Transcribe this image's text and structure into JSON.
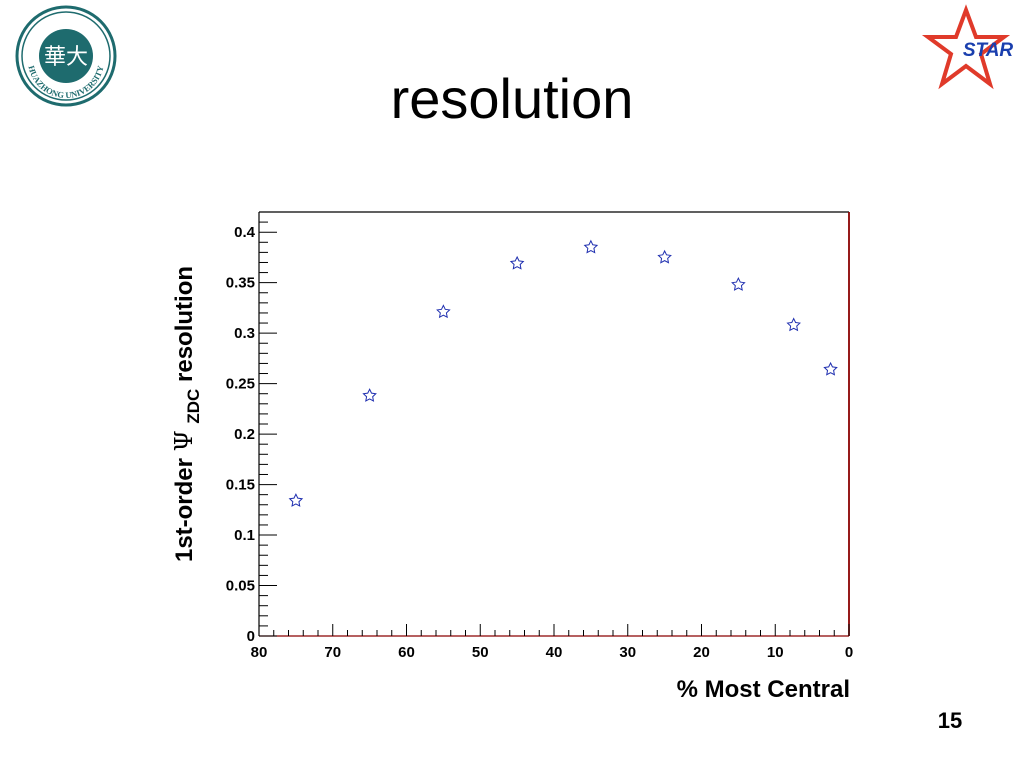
{
  "slide": {
    "title": "resolution",
    "page_number": "15"
  },
  "logos": {
    "left": {
      "icon": "university-seal-icon",
      "text": "HUAZHONG UNIVERSITY",
      "glyph": "華大",
      "color": "#1e6b6e"
    },
    "right": {
      "icon": "star-logo-icon",
      "text": "STAR",
      "star_color": "#e03a2a",
      "text_color": "#1a3fae"
    }
  },
  "chart_data": {
    "type": "scatter",
    "xlabel": "% Most Central",
    "ylabel_parts": {
      "prefix": "1st-order ",
      "symbol": "Ψ",
      "subscript": "ZDC",
      "suffix": " resolution"
    },
    "xlim": [
      80,
      0
    ],
    "ylim": [
      0,
      0.42
    ],
    "x_ticks": [
      80,
      70,
      60,
      50,
      40,
      30,
      20,
      10,
      0
    ],
    "y_ticks": [
      0,
      0.05,
      0.1,
      0.15,
      0.2,
      0.25,
      0.3,
      0.35,
      0.4
    ],
    "x_tick_labels": [
      "80",
      "70",
      "60",
      "50",
      "40",
      "30",
      "20",
      "10",
      "0"
    ],
    "y_tick_labels": [
      "0",
      "0.05",
      "0.1",
      "0.15",
      "0.2",
      "0.25",
      "0.3",
      "0.35",
      "0.4"
    ],
    "marker": "open-star",
    "marker_color": "#1f2fb0",
    "frame_right_color": "#8b0000",
    "points": [
      {
        "x": 75,
        "y": 0.134
      },
      {
        "x": 65,
        "y": 0.238
      },
      {
        "x": 55,
        "y": 0.321
      },
      {
        "x": 45,
        "y": 0.369
      },
      {
        "x": 35,
        "y": 0.385
      },
      {
        "x": 25,
        "y": 0.375
      },
      {
        "x": 15,
        "y": 0.348
      },
      {
        "x": 7.5,
        "y": 0.308
      },
      {
        "x": 2.5,
        "y": 0.264
      }
    ]
  }
}
